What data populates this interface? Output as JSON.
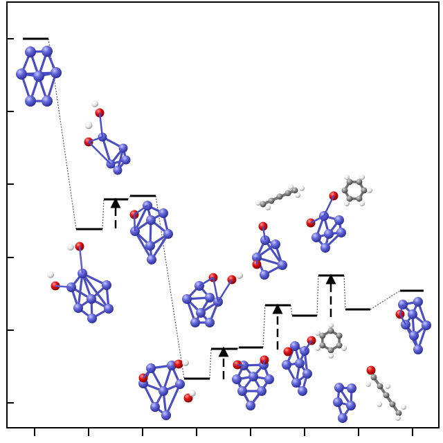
{
  "diagram": {
    "kind": "energy-profile-with-cluster-structures",
    "colors": {
      "cluster_atom": "#5b5fd0",
      "cluster_bond": "#4a4ec2",
      "oxygen": "#e01010",
      "hydrogen": "#f2f2f2",
      "carbon": "#8a8a8a",
      "level_line": "#000000",
      "connector": "#555555",
      "frame": "#000000"
    },
    "energy_levels": [
      {
        "id": "L1",
        "step": 1
      },
      {
        "id": "L2",
        "step": 2
      },
      {
        "id": "L3",
        "step": 3
      },
      {
        "id": "L4",
        "step": 4
      },
      {
        "id": "L5",
        "step": 5
      },
      {
        "id": "L6",
        "step": 6
      },
      {
        "id": "L7",
        "step": 7
      },
      {
        "id": "L8",
        "step": 8
      },
      {
        "id": "L9",
        "step": 9
      },
      {
        "id": "L10",
        "step": 10
      },
      {
        "id": "L11",
        "step": 11
      },
      {
        "id": "L12",
        "step": 12
      },
      {
        "id": "L13",
        "step": 13
      }
    ],
    "transition_arrows": 4,
    "y_axis_ticks": 6,
    "x_axis_ticks": 8,
    "structures": [
      {
        "id": "S1",
        "contains": [
          "cluster"
        ]
      },
      {
        "id": "S2",
        "contains": [
          "cluster",
          "oxygen",
          "hydrogen"
        ]
      },
      {
        "id": "S3",
        "contains": [
          "cluster",
          "oxygen",
          "hydrogen"
        ]
      },
      {
        "id": "S4",
        "contains": [
          "cluster",
          "oxygen"
        ]
      },
      {
        "id": "S5",
        "contains": [
          "cluster",
          "oxygen",
          "hydrogen"
        ]
      },
      {
        "id": "S6",
        "contains": [
          "cluster",
          "oxygen",
          "hydrogen"
        ]
      },
      {
        "id": "S7",
        "contains": [
          "cluster",
          "oxygen",
          "carbon",
          "hydrogen"
        ]
      },
      {
        "id": "S8",
        "contains": [
          "cluster",
          "oxygen"
        ]
      },
      {
        "id": "S9",
        "contains": [
          "cluster",
          "oxygen",
          "carbon",
          "hydrogen"
        ]
      },
      {
        "id": "S10",
        "contains": [
          "cluster",
          "oxygen",
          "carbon",
          "hydrogen"
        ]
      },
      {
        "id": "S11",
        "contains": [
          "cluster",
          "oxygen",
          "carbon",
          "hydrogen"
        ]
      },
      {
        "id": "S12",
        "contains": [
          "cluster",
          "oxygen"
        ]
      }
    ]
  }
}
